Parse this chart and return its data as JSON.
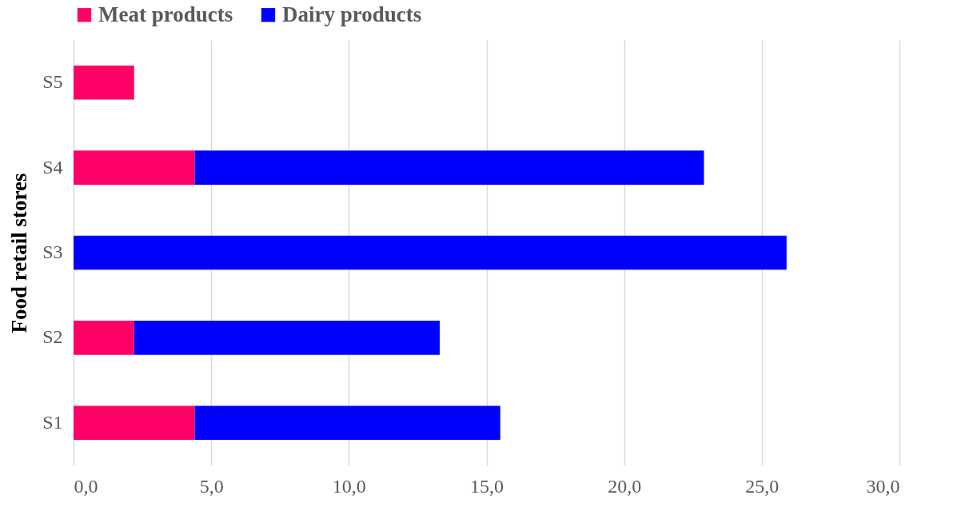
{
  "chart_data": {
    "type": "bar",
    "orientation": "horizontal",
    "stacked": true,
    "ylabel": "Food retail stores",
    "categories": [
      "S5",
      "S4",
      "S3",
      "S2",
      "S1"
    ],
    "series": [
      {
        "name": "Meat products",
        "color": "#ff0066",
        "values": [
          2.2,
          4.4,
          null,
          2.2,
          4.4
        ]
      },
      {
        "name": "Dairy products",
        "color": "#0000ff",
        "values": [
          null,
          18.5,
          25.9,
          11.1,
          11.1
        ]
      }
    ],
    "xlim": [
      0,
      30
    ],
    "xticks": [
      {
        "value": 0,
        "label": "0,0"
      },
      {
        "value": 5,
        "label": "5,0"
      },
      {
        "value": 10,
        "label": "10,0"
      },
      {
        "value": 15,
        "label": "15,0"
      },
      {
        "value": 20,
        "label": "20,0"
      },
      {
        "value": 25,
        "label": "25,0"
      },
      {
        "value": 30,
        "label": "30,0"
      }
    ],
    "grid": "x",
    "legend": "top"
  }
}
